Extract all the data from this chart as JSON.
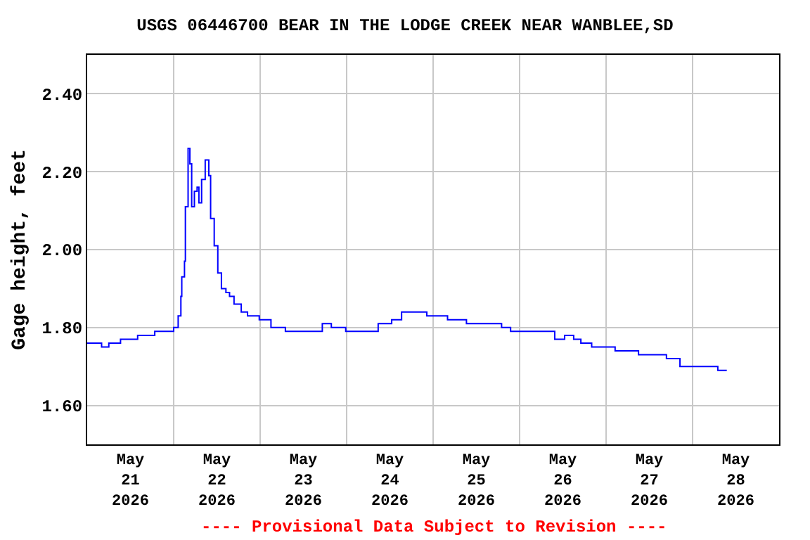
{
  "chart_data": {
    "type": "step",
    "title": "USGS 06446700 BEAR IN THE LODGE CREEK NEAR WANBLEE,SD",
    "ylabel": "Gage height, feet",
    "annotations": [
      "---- Provisional Data Subject to Revision ----"
    ],
    "x": [
      "2026-05-21T00:00",
      "2026-05-21T04:00",
      "2026-05-21T06:00",
      "2026-05-21T09:15",
      "2026-05-21T14:00",
      "2026-05-21T18:45",
      "2026-05-22T00:00",
      "2026-05-22T01:15",
      "2026-05-22T02:00",
      "2026-05-22T02:15",
      "2026-05-22T03:00",
      "2026-05-22T03:15",
      "2026-05-22T04:00",
      "2026-05-22T04:30",
      "2026-05-22T05:00",
      "2026-05-22T05:45",
      "2026-05-22T06:30",
      "2026-05-22T07:00",
      "2026-05-22T07:45",
      "2026-05-22T08:45",
      "2026-05-22T09:45",
      "2026-05-22T10:15",
      "2026-05-22T11:15",
      "2026-05-22T12:15",
      "2026-05-22T13:15",
      "2026-05-22T14:30",
      "2026-05-22T15:30",
      "2026-05-22T16:45",
      "2026-05-22T18:45",
      "2026-05-22T20:30",
      "2026-05-22T23:45",
      "2026-05-23T03:00",
      "2026-05-23T07:00",
      "2026-05-23T17:15",
      "2026-05-23T19:45",
      "2026-05-23T23:45",
      "2026-05-24T08:45",
      "2026-05-24T12:30",
      "2026-05-24T15:15",
      "2026-05-24T21:00",
      "2026-05-24T22:15",
      "2026-05-25T04:00",
      "2026-05-25T09:15",
      "2026-05-25T19:00",
      "2026-05-25T21:30",
      "2026-05-26T09:45",
      "2026-05-26T12:30",
      "2026-05-26T15:00",
      "2026-05-26T17:00",
      "2026-05-26T20:00",
      "2026-05-27T02:30",
      "2026-05-27T09:00",
      "2026-05-27T16:45",
      "2026-05-27T20:30",
      "2026-05-28T07:00",
      "2026-05-28T09:30"
    ],
    "series": [
      {
        "color": "#0000ff",
        "values": [
          1.76,
          1.75,
          1.76,
          1.77,
          1.78,
          1.79,
          1.8,
          1.83,
          1.88,
          1.93,
          1.97,
          2.11,
          2.26,
          2.22,
          2.11,
          2.15,
          2.16,
          2.12,
          2.18,
          2.23,
          2.19,
          2.08,
          2.01,
          1.94,
          1.9,
          1.89,
          1.88,
          1.86,
          1.84,
          1.83,
          1.82,
          1.8,
          1.79,
          1.81,
          1.8,
          1.79,
          1.81,
          1.82,
          1.84,
          1.84,
          1.83,
          1.82,
          1.81,
          1.8,
          1.79,
          1.77,
          1.78,
          1.77,
          1.76,
          1.75,
          1.74,
          1.73,
          1.72,
          1.7,
          1.69,
          1.69
        ]
      }
    ],
    "xlim": [
      "2026-05-21T00:00",
      "2026-05-29T00:00"
    ],
    "xticks": [
      {
        "value": "2026-05-21T12:00",
        "label": "May\n21\n2026"
      },
      {
        "value": "2026-05-22T00:00",
        "label": null
      },
      {
        "value": "2026-05-22T12:00",
        "label": "May\n22\n2026"
      },
      {
        "value": "2026-05-23T00:00",
        "label": null
      },
      {
        "value": "2026-05-23T12:00",
        "label": "May\n23\n2026"
      },
      {
        "value": "2026-05-24T00:00",
        "label": null
      },
      {
        "value": "2026-05-24T12:00",
        "label": "May\n24\n2026"
      },
      {
        "value": "2026-05-25T00:00",
        "label": null
      },
      {
        "value": "2026-05-25T12:00",
        "label": "May\n25\n2026"
      },
      {
        "value": "2026-05-26T00:00",
        "label": null
      },
      {
        "value": "2026-05-26T12:00",
        "label": "May\n26\n2026"
      },
      {
        "value": "2026-05-27T00:00",
        "label": null
      },
      {
        "value": "2026-05-27T12:00",
        "label": "May\n27\n2026"
      },
      {
        "value": "2026-05-28T00:00",
        "label": null
      },
      {
        "value": "2026-05-28T12:00",
        "label": "May\n28\n2026"
      }
    ],
    "ylim": [
      1.5,
      2.5
    ],
    "yticks": [
      {
        "value": 1.6,
        "label": "1.60"
      },
      {
        "value": 1.8,
        "label": "1.80"
      },
      {
        "value": 2.0,
        "label": "2.00"
      },
      {
        "value": 2.2,
        "label": "2.20"
      },
      {
        "value": 2.4,
        "label": "2.40"
      }
    ],
    "grid": true
  }
}
